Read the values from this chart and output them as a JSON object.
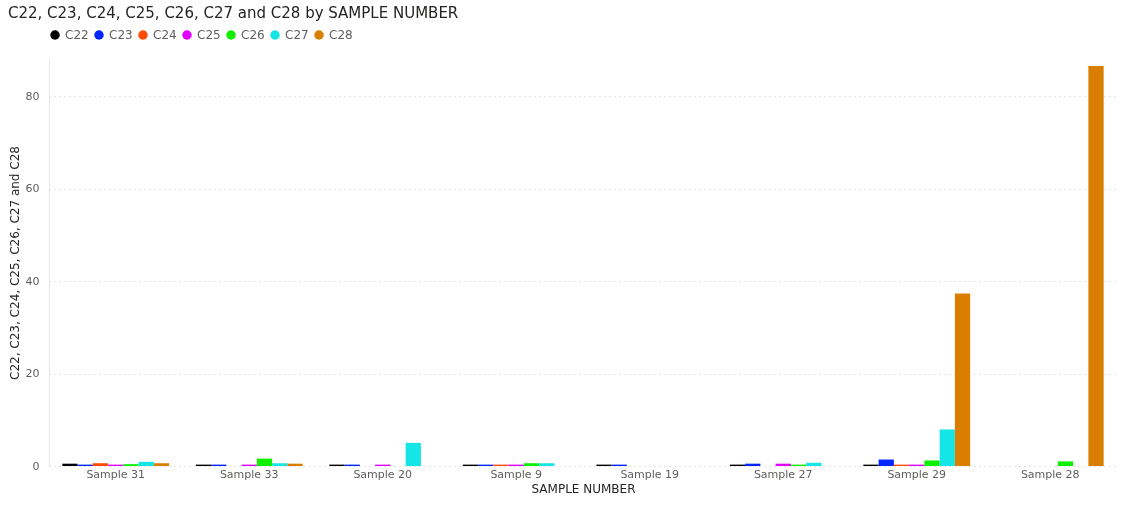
{
  "chart_data": {
    "type": "bar",
    "title": "C22, C23, C24, C25, C26, C27 and C28 by SAMPLE NUMBER",
    "xlabel": "SAMPLE NUMBER",
    "ylabel": "C22, C23, C24, C25, C26, C27 and C28",
    "categories": [
      "Sample 31",
      "Sample 33",
      "Sample 20",
      "Sample 9",
      "Sample 19",
      "Sample 27",
      "Sample 29",
      "Sample 28"
    ],
    "series": [
      {
        "name": "C22",
        "color": "#000000",
        "values": [
          0.5,
          0.3,
          0.3,
          0.3,
          0.3,
          0.3,
          0.3,
          null
        ]
      },
      {
        "name": "C23",
        "color": "#0026ff",
        "values": [
          0.3,
          0.3,
          0.3,
          0.3,
          0.3,
          0.5,
          1.4,
          null
        ]
      },
      {
        "name": "C24",
        "color": "#ff4c00",
        "values": [
          0.6,
          null,
          null,
          0.3,
          null,
          null,
          0.3,
          null
        ]
      },
      {
        "name": "C25",
        "color": "#e100ff",
        "values": [
          0.3,
          0.3,
          0.3,
          0.3,
          null,
          0.5,
          0.3,
          null
        ]
      },
      {
        "name": "C26",
        "color": "#0ef000",
        "values": [
          0.4,
          1.6,
          null,
          0.6,
          null,
          0.3,
          1.2,
          1.0
        ]
      },
      {
        "name": "C27",
        "color": "#16e5e5",
        "values": [
          0.9,
          0.6,
          5.0,
          0.6,
          null,
          0.7,
          7.9,
          null
        ]
      },
      {
        "name": "C28",
        "color": "#d97e00",
        "values": [
          0.6,
          0.5,
          null,
          null,
          null,
          null,
          37.3,
          86.5
        ]
      }
    ],
    "ylim": [
      0,
      88
    ],
    "yticks": [
      0,
      20,
      40,
      60,
      80
    ],
    "grid": "y",
    "legend": "top left"
  }
}
